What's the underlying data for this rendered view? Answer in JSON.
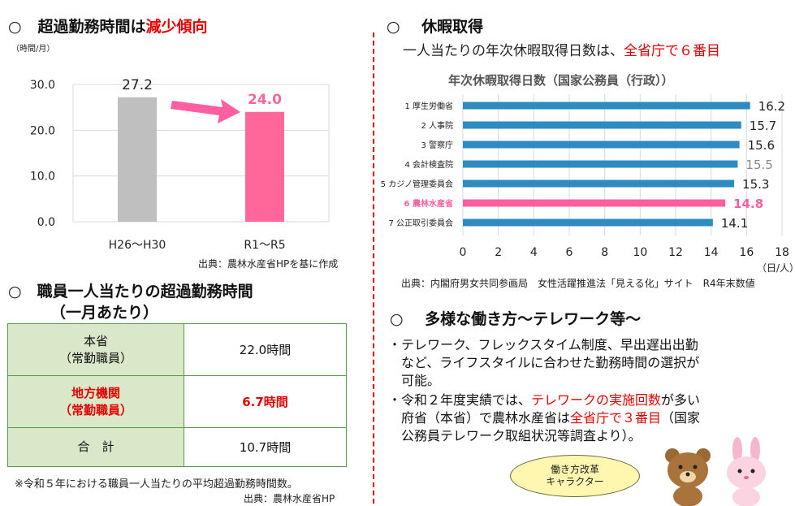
{
  "left": {
    "overtime_title": {
      "bullet": "○",
      "prefix": "超過勤務時間は",
      "highlight": "減少傾向"
    },
    "overtime_chart_unit": "（時間/月）",
    "overtime_source": "出典：農林水産省HPを基に作成",
    "table_title": {
      "line1": "○　職員一人当たりの超過勤務時間",
      "line2": "（一月あたり）"
    },
    "table_rows": [
      {
        "label1": "本省",
        "label2": "（常勤職員）",
        "value": "22.0時間",
        "highlight": false
      },
      {
        "label1": "地方機関",
        "label2": "（常勤職員）",
        "value": "6.7時間",
        "highlight": true
      },
      {
        "label1": "合　計",
        "label2": "",
        "value": "10.7時間",
        "highlight": false
      }
    ],
    "table_note": "※令和５年における職員一人当たりの平均超過勤務時間数。",
    "table_source": "出典：農林水産省HP"
  },
  "right": {
    "leave_title": {
      "bullet": "○",
      "text": "休暇取得"
    },
    "leave_sub": {
      "prefix": "一人当たりの年次休暇取得日数は、",
      "highlight": "全省庁で６番目"
    },
    "leave_chart_title": "年次休暇取得日数（国家公務員（行政））",
    "leave_unit": "（日/人）",
    "leave_source": "出典：内閣府男女共同参画局　女性活躍推進法「見える化」サイト　R4年末数値",
    "work_title": {
      "bullet": "○",
      "text": "多様な働き方～テレワーク等～"
    },
    "para1": [
      "・テレワーク、フレックスタイム制度、早出遅出出勤",
      "　など、ライフスタイルに合わせた勤務時間の選択が",
      "　可能。"
    ],
    "para2": {
      "line1_prefix": "・令和２年度実績では、",
      "line1_highlight": "テレワークの実施回数",
      "line1_suffix": "が多い",
      "line2_prefix": "　府省（本省）で農林水産省は",
      "line2_highlight": "全省庁で３番目",
      "line2_suffix": "（国家",
      "line3": "　公務員テレワーク取組状況等調査より）。"
    },
    "bubble": {
      "line1": "働き方改革",
      "line2": "キャラクター"
    }
  },
  "chart_data": [
    {
      "type": "bar",
      "categories": [
        "H26～H30",
        "R1～R5"
      ],
      "values": [
        27.2,
        24.0
      ],
      "value_labels": [
        "27.2",
        "24.0"
      ],
      "ylabel": "（時間/月）",
      "ylim": [
        0,
        30
      ],
      "yticks": [
        "0.0",
        "10.0",
        "20.0",
        "30.0"
      ],
      "colors": [
        "#bfbfbf",
        "#ff6699"
      ],
      "grid": true
    },
    {
      "type": "bar",
      "orientation": "horizontal",
      "title": "年次休暇取得日数（国家公務員（行政））",
      "categories": [
        "1 厚生労働省",
        "2 人事院",
        "3 警察庁",
        "4 会計検査院",
        "5 カジノ管理委員会",
        "6 農林水産省",
        "7 公正取引委員会"
      ],
      "values": [
        16.2,
        15.7,
        15.6,
        15.5,
        15.3,
        14.8,
        14.1
      ],
      "value_labels": [
        "16.2",
        "15.7",
        "15.6",
        "15.5",
        "15.3",
        "14.8",
        "14.1"
      ],
      "highlight_index": 5,
      "xlim": [
        0,
        18
      ],
      "xticks": [
        "0",
        "2",
        "4",
        "6",
        "8",
        "10",
        "12",
        "14",
        "16",
        "18"
      ],
      "xlabel": "（日/人）",
      "colors": {
        "bar": "#2e8bc0",
        "highlight": "#ff5fa0"
      },
      "grid": true
    }
  ]
}
